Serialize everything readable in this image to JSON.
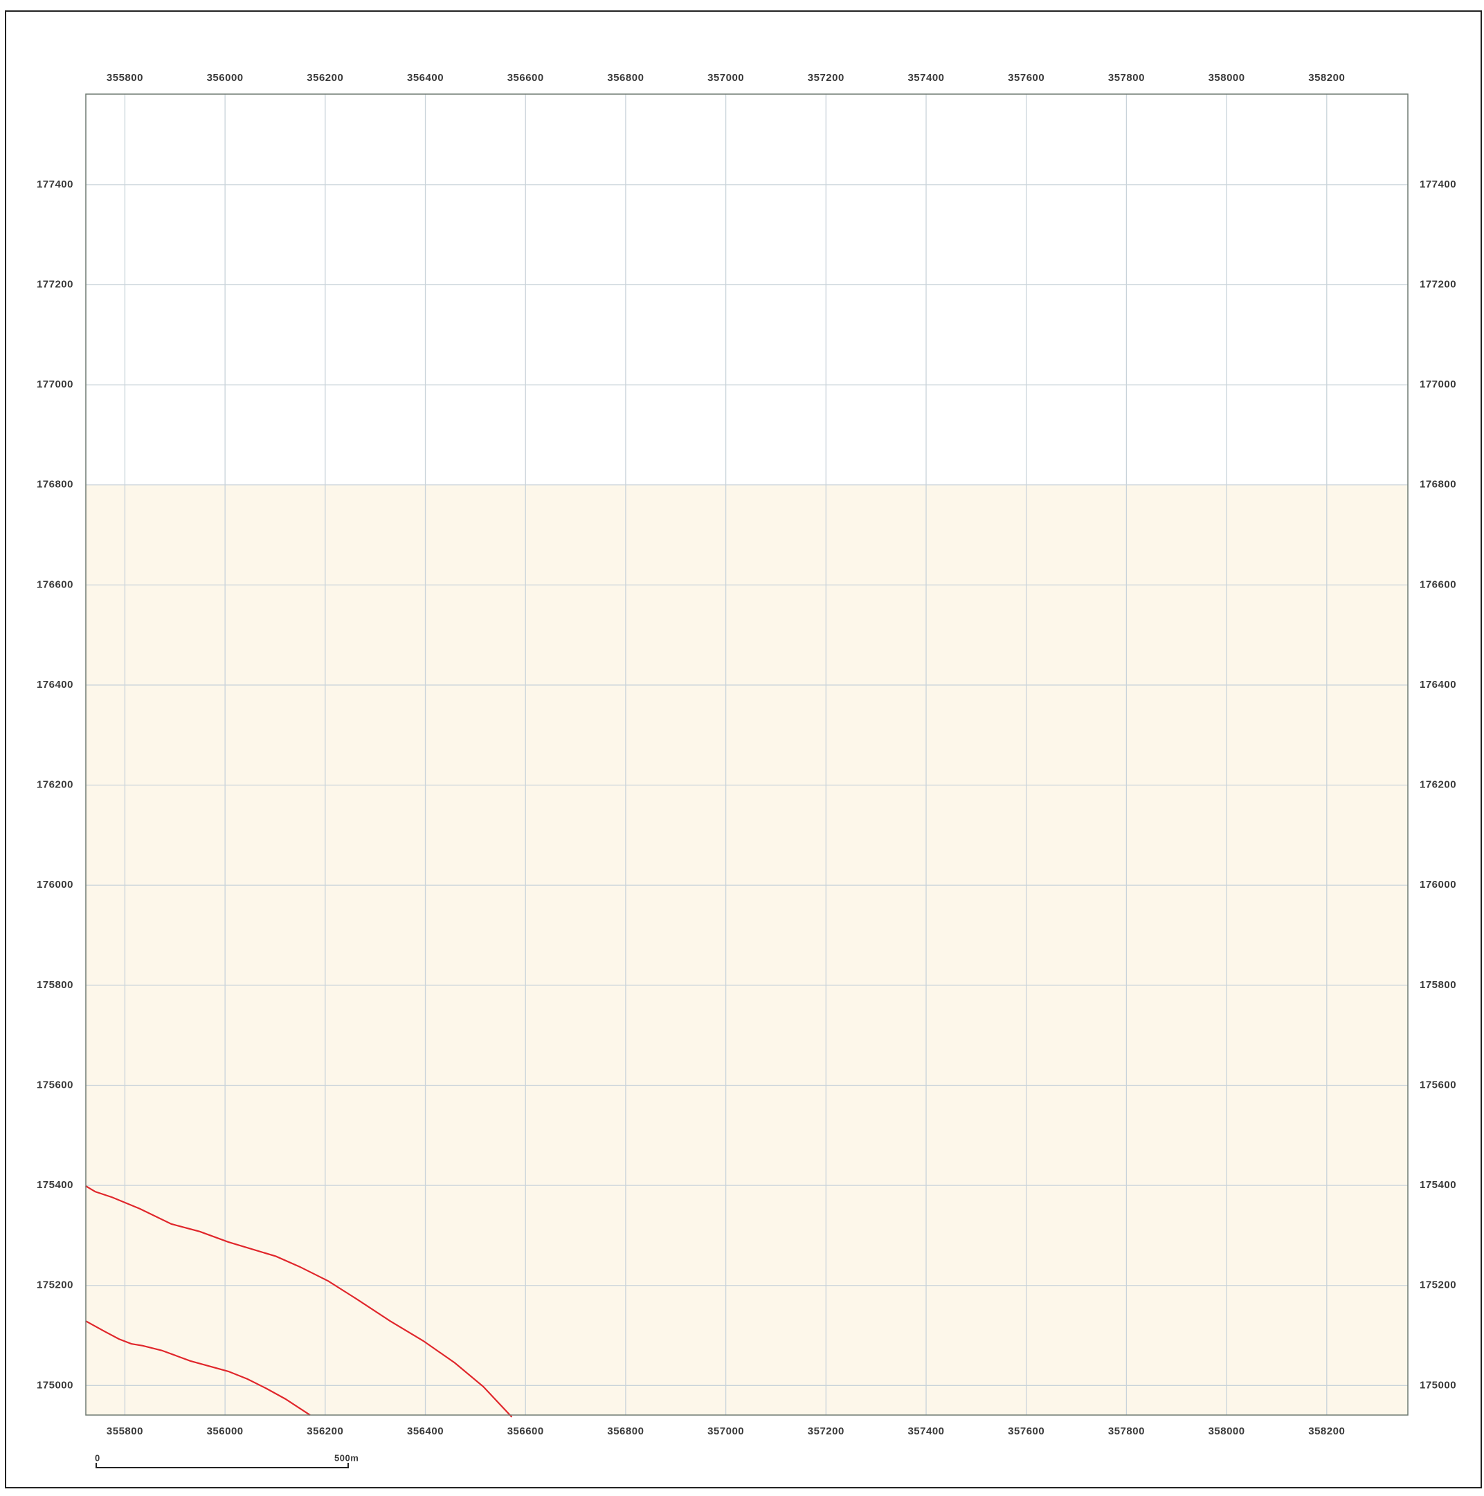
{
  "chart_data": {
    "type": "map",
    "xlim": [
      355722,
      358362
    ],
    "ylim": [
      174941,
      177581
    ],
    "xticks": [
      355800,
      356000,
      356200,
      356400,
      356600,
      356800,
      357000,
      357200,
      357400,
      357600,
      357800,
      358000,
      358200
    ],
    "yticks": [
      175000,
      175200,
      175400,
      175600,
      175800,
      176000,
      176200,
      176400,
      176600,
      176800,
      177000,
      177200,
      177400
    ],
    "grid": true,
    "scale_bar": {
      "start_label": "0",
      "end_label": "500m"
    }
  }
}
